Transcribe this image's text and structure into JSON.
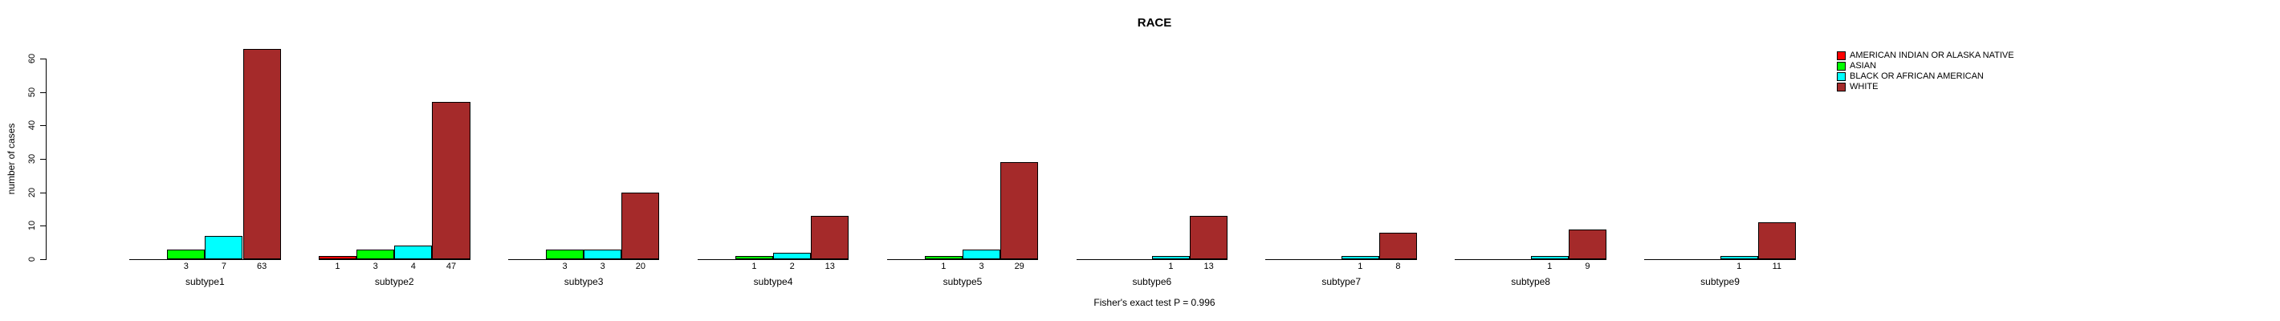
{
  "chart_data": {
    "type": "bar",
    "title": "RACE",
    "ylabel": "number of cases",
    "xlabel": "",
    "ylim": [
      0,
      60
    ],
    "yticks": [
      0,
      10,
      20,
      30,
      40,
      50,
      60
    ],
    "grid": false,
    "legend_position": "top-right",
    "bar_value_labels_shown": "under each bar when value > 0",
    "categories": [
      "subtype1",
      "subtype2",
      "subtype3",
      "subtype4",
      "subtype5",
      "subtype6",
      "subtype7",
      "subtype8",
      "subtype9"
    ],
    "series": [
      {
        "name": "AMERICAN INDIAN OR ALASKA NATIVE",
        "color": "#FF0000",
        "values": [
          0,
          1,
          0,
          0,
          0,
          0,
          0,
          0,
          0
        ]
      },
      {
        "name": "ASIAN",
        "color": "#00FF00",
        "values": [
          3,
          3,
          3,
          1,
          1,
          0,
          0,
          0,
          0
        ]
      },
      {
        "name": "BLACK OR AFRICAN AMERICAN",
        "color": "#00FFFF",
        "values": [
          7,
          4,
          3,
          2,
          3,
          1,
          1,
          1,
          1
        ]
      },
      {
        "name": "WHITE",
        "color": "#A52A2A",
        "values": [
          63,
          47,
          20,
          13,
          29,
          13,
          8,
          9,
          11
        ]
      }
    ],
    "annotation": "Fisher's exact test P = 0.996"
  }
}
